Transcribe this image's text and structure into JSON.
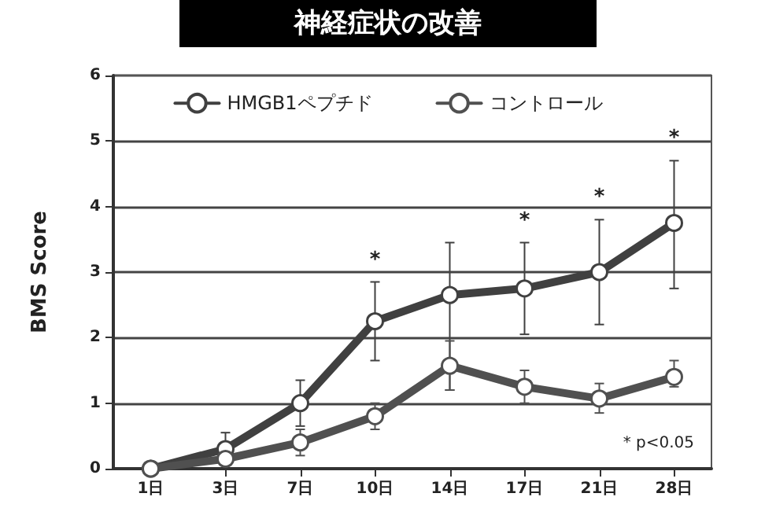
{
  "chart_data": {
    "type": "line",
    "title": "神経症状の改善",
    "ylabel": "BMS Score",
    "categories": [
      "1日",
      "3日",
      "7日",
      "10日",
      "14日",
      "17日",
      "21日",
      "28日"
    ],
    "ylim": [
      0,
      6
    ],
    "yticks": [
      0,
      1,
      2,
      3,
      4,
      5,
      6
    ],
    "grid": "y",
    "legend": "top",
    "marker": "circle",
    "line_style": "solid",
    "series": [
      {
        "name": "HMGB1ペプチド",
        "color": "#404040",
        "values": [
          0,
          0.3,
          1.0,
          2.25,
          2.65,
          2.75,
          3.0,
          3.75
        ],
        "errors": [
          null,
          0.25,
          0.35,
          0.6,
          [
            1.2,
            3.45
          ],
          [
            2.05,
            3.45
          ],
          [
            2.2,
            3.8
          ],
          [
            2.75,
            4.7
          ]
        ]
      },
      {
        "name": "コントロール",
        "color": "#505050",
        "values": [
          0,
          0.15,
          0.4,
          0.8,
          1.57,
          1.25,
          1.07,
          1.4
        ],
        "errors": [
          null,
          0.1,
          [
            0.2,
            0.6
          ],
          [
            0.6,
            1.0
          ],
          [
            1.2,
            1.95
          ],
          [
            1.0,
            1.5
          ],
          [
            0.85,
            1.3
          ],
          [
            1.25,
            1.65
          ]
        ]
      }
    ],
    "annotations": [
      {
        "text": "*",
        "x": "10日",
        "y": 2.85
      },
      {
        "text": "*",
        "x": "17日",
        "y": 3.45
      },
      {
        "text": "*",
        "x": "21日",
        "y": 3.8
      },
      {
        "text": "*",
        "x": "28日",
        "y": 4.7
      },
      "* p<0.05"
    ]
  }
}
